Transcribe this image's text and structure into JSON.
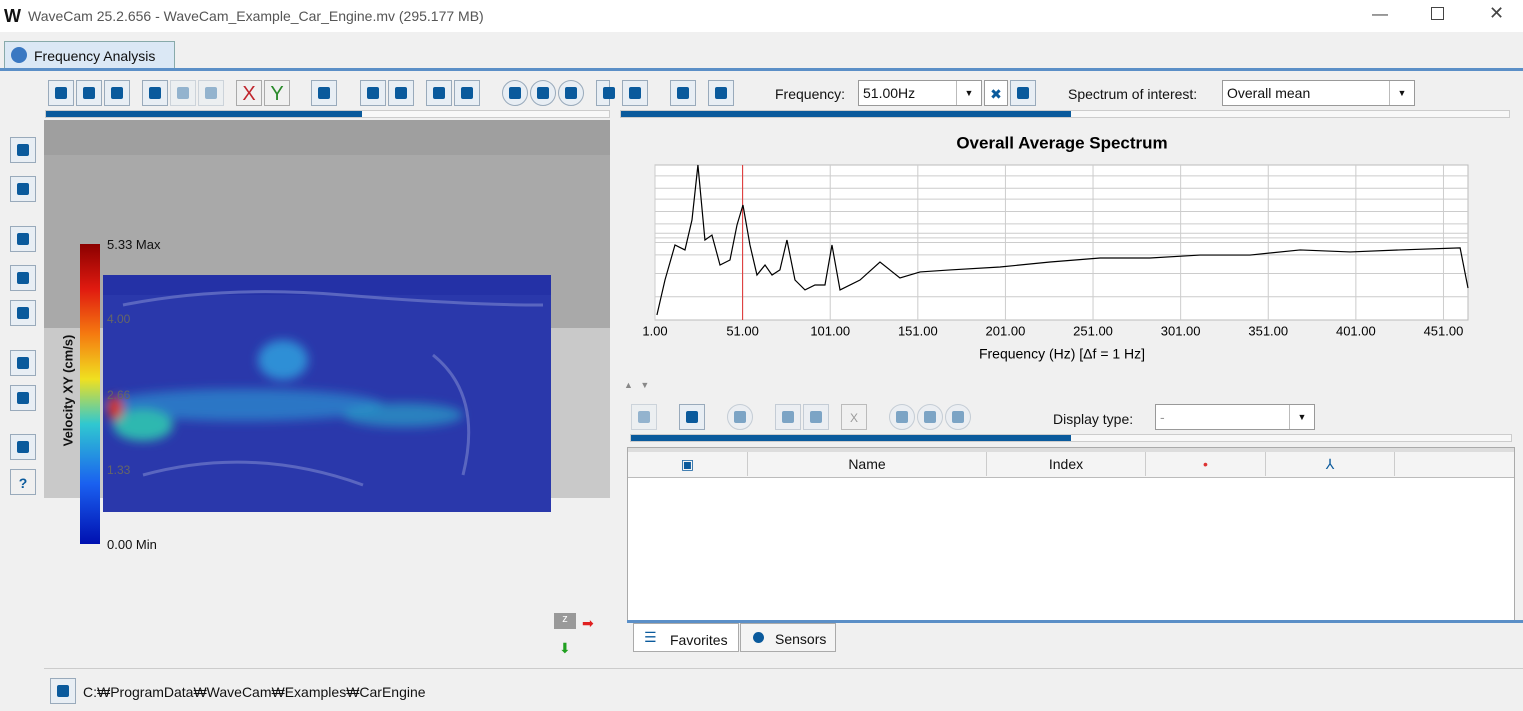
{
  "window": {
    "title": "WaveCam 25.2.656 - WaveCam_Example_Car_Engine.mv (295.177 MB)"
  },
  "tab": "Frequency Analysis",
  "toolbar": {
    "x_button": "X",
    "y_button": "Y",
    "frequency_label": "Frequency:",
    "frequency_value": "51.00Hz",
    "spectrum_label": "Spectrum of interest:",
    "spectrum_value": "Overall mean"
  },
  "colorbar": {
    "label": "Velocity XY (cm/s)",
    "ticks": [
      "5.33 Max",
      "4.00",
      "2.66",
      "1.33",
      "0.00 Min"
    ]
  },
  "chart_data": {
    "type": "line",
    "title": "Overall Average Spectrum",
    "x_label": "Frequency (Hz) [Δf = 1 Hz]",
    "x": [
      2.1,
      6.7,
      12.4,
      18.1,
      22.1,
      25.5,
      29.5,
      33.5,
      38.1,
      43.8,
      47.8,
      51.2,
      55.2,
      59.2,
      63.8,
      67.8,
      72.3,
      76.3,
      80.9,
      86.6,
      92.3,
      98.0,
      102.0,
      106.6,
      118.0,
      129.4,
      140.8,
      152.3,
      169.4,
      197.9,
      226.5,
      255.0,
      283.5,
      312.1,
      340.6,
      369.2,
      397.7,
      426.2,
      460.5,
      465.0
    ],
    "series": [
      {
        "name": "Overall mean",
        "color": "#000000",
        "values": [
          3.2,
          25.8,
          48.4,
          45.2,
          64.5,
          100,
          51.6,
          54.8,
          35.5,
          38.7,
          61.3,
          74.2,
          48.4,
          29.0,
          35.5,
          29.0,
          32.3,
          51.6,
          25.8,
          19.4,
          22.6,
          22.6,
          48.4,
          19.4,
          25.8,
          37.4,
          27.1,
          31.0,
          32.3,
          34.2,
          37.4,
          40.0,
          40.0,
          41.9,
          41.9,
          45.2,
          43.9,
          45.2,
          46.5,
          20.6
        ]
      }
    ],
    "marker_x": 51,
    "marker_color": "#e03030",
    "xlim": [
      1,
      465
    ],
    "ylim": [
      0,
      100
    ],
    "xticks": [
      {
        "value": 1,
        "label": "1.00"
      },
      {
        "value": 51,
        "label": "51.00"
      },
      {
        "value": 101,
        "label": "101.00"
      },
      {
        "value": 151,
        "label": "151.00"
      },
      {
        "value": 201,
        "label": "201.00"
      },
      {
        "value": 251,
        "label": "251.00"
      },
      {
        "value": 301,
        "label": "301.00"
      },
      {
        "value": 351,
        "label": "351.00"
      },
      {
        "value": 401,
        "label": "401.00"
      },
      {
        "value": 451,
        "label": "451.00"
      }
    ],
    "grid": true
  },
  "results": {
    "x_button": "X",
    "display_type_label": "Display type:",
    "display_type_value": "-",
    "columns": [
      "Name",
      "Index"
    ],
    "tabs": [
      "Favorites",
      "Sensors"
    ]
  },
  "status": {
    "path": "C:₩ProgramData₩WaveCam₩Examples₩CarEngine"
  }
}
